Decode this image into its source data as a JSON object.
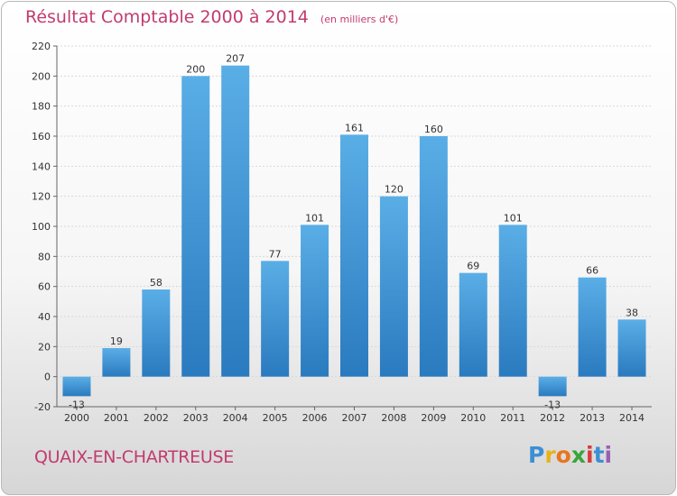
{
  "header": {
    "title": "Résultat Comptable 2000 à 2014",
    "unit_note": "(en milliers d'€)"
  },
  "footer": {
    "commune": "QUAIX-EN-CHARTREUSE",
    "logo_letters": [
      "P",
      "r",
      "o",
      "x",
      "i",
      "t",
      "i"
    ],
    "logo_colors": [
      "#3b8fd4",
      "#e8b21c",
      "#e8761c",
      "#3aa53a",
      "#d63c3c",
      "#3b8fd4",
      "#9a5fb4"
    ]
  },
  "chart_data": {
    "type": "bar",
    "title": "Résultat Comptable 2000 à 2014",
    "subtitle": "(en milliers d'€)",
    "xlabel": "",
    "ylabel": "",
    "categories": [
      "2000",
      "2001",
      "2002",
      "2003",
      "2004",
      "2005",
      "2006",
      "2007",
      "2008",
      "2009",
      "2010",
      "2011",
      "2012",
      "2013",
      "2014"
    ],
    "values": [
      -13,
      19,
      58,
      200,
      207,
      77,
      101,
      161,
      120,
      160,
      69,
      101,
      -13,
      66,
      38
    ],
    "data_labels": [
      "-13",
      "19",
      "58",
      "200",
      "207",
      "77",
      "101",
      "161",
      "120",
      "160",
      "69",
      "101",
      "-13",
      "66",
      "38"
    ],
    "ylim": [
      -20,
      220
    ],
    "yticks": [
      -20,
      0,
      20,
      40,
      60,
      80,
      100,
      120,
      140,
      160,
      180,
      200,
      220
    ],
    "grid": true,
    "bar_color_top": "#5aaee6",
    "bar_color_bottom": "#2a7abf"
  }
}
